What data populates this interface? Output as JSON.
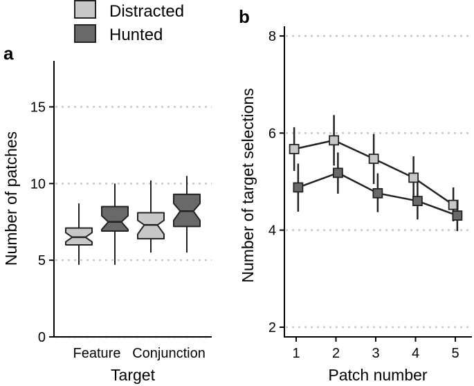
{
  "legend": {
    "placement": "top-center",
    "items": [
      {
        "label": "Distracted",
        "color": "#c8c8c8"
      },
      {
        "label": "Hunted",
        "color": "#696969"
      }
    ]
  },
  "panels": {
    "a": {
      "label": "a"
    },
    "b": {
      "label": "b"
    }
  },
  "chart_data": [
    {
      "panel": "a",
      "type": "boxplot",
      "notched": true,
      "ylabel": "Number of patches",
      "xlabel": "Target",
      "categories": [
        "Feature",
        "Conjunction"
      ],
      "ylim": [
        0,
        18
      ],
      "yticks": [
        0,
        5,
        10,
        15
      ],
      "ytick_labels": [
        "0",
        "5",
        "10",
        "15"
      ],
      "grid": "horizontal dotted",
      "series": [
        {
          "name": "Distracted",
          "color": "#c8c8c8",
          "boxes": [
            {
              "category": "Feature",
              "whisker_low": 4.7,
              "q1": 6.0,
              "median": 6.5,
              "q3": 7.1,
              "whisker_high": 8.7,
              "notch_low": 6.2,
              "notch_high": 6.8
            },
            {
              "category": "Conjunction",
              "whisker_low": 5.5,
              "q1": 6.4,
              "median": 7.3,
              "q3": 8.1,
              "whisker_high": 10.2,
              "notch_low": 6.7,
              "notch_high": 7.6
            }
          ]
        },
        {
          "name": "Hunted",
          "color": "#696969",
          "boxes": [
            {
              "category": "Feature",
              "whisker_low": 4.7,
              "q1": 6.9,
              "median": 7.5,
              "q3": 8.5,
              "whisker_high": 10.0,
              "notch_low": 7.0,
              "notch_high": 7.9
            },
            {
              "category": "Conjunction",
              "whisker_low": 5.5,
              "q1": 7.2,
              "median": 8.2,
              "q3": 9.3,
              "whisker_high": 10.5,
              "notch_low": 7.6,
              "notch_high": 8.7
            }
          ]
        }
      ]
    },
    {
      "panel": "b",
      "type": "line",
      "markers": "square",
      "error_bars": true,
      "ylabel": "Number of target selections",
      "xlabel": "Patch number",
      "x": [
        1,
        2,
        3,
        4,
        5
      ],
      "xlim": [
        0.8,
        5.3
      ],
      "ylim": [
        1.8,
        8.2
      ],
      "xticks": [
        1,
        2,
        3,
        4,
        5
      ],
      "xtick_labels": [
        "1",
        "2",
        "3",
        "4",
        "5"
      ],
      "yticks": [
        2,
        4,
        6,
        8
      ],
      "ytick_labels": [
        "2",
        "4",
        "6",
        "8"
      ],
      "grid": "horizontal dotted",
      "series": [
        {
          "name": "Distracted",
          "color": "#c8c8c8",
          "values": [
            5.67,
            5.85,
            5.47,
            5.08,
            4.52
          ],
          "err_low": [
            5.22,
            5.33,
            4.95,
            4.62,
            4.18
          ],
          "err_high": [
            6.12,
            6.37,
            5.98,
            5.52,
            4.88
          ],
          "x_offset": -0.05
        },
        {
          "name": "Hunted",
          "color": "#696969",
          "values": [
            4.88,
            5.18,
            4.76,
            4.6,
            4.3
          ],
          "err_low": [
            4.38,
            4.75,
            4.37,
            4.22,
            3.98
          ],
          "err_high": [
            5.37,
            5.6,
            5.17,
            4.98,
            4.62
          ],
          "x_offset": 0.05
        }
      ]
    }
  ]
}
